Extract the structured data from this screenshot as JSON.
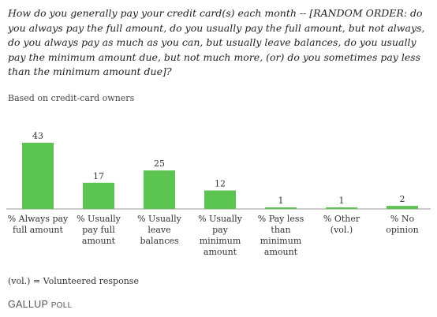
{
  "question": "How do you generally pay your credit card(s) each month -- [RANDOM ORDER: do you always pay the full amount, do you usually pay the full amount, but not always, do you always pay as much as you can, but usually leave balances, do you usually pay the minimum amount due, but not much more, (or) do you sometimes pay less than the minimum amount due]?",
  "subtitle": "Based on credit-card owners",
  "footnote": "(vol.) = Volunteered response",
  "logo": {
    "main": "GALLUP",
    "sub": "POLL"
  },
  "colors": {
    "bar": "#5cc552",
    "axis": "#999999"
  },
  "chart_data": {
    "type": "bar",
    "title": "",
    "xlabel": "",
    "ylabel": "",
    "ylim": [
      0,
      43
    ],
    "grid": false,
    "legend": "none",
    "categories": [
      [
        "% Always pay",
        "full amount"
      ],
      [
        "% Usually",
        "pay full",
        "amount"
      ],
      [
        "% Usually",
        "leave",
        "balances"
      ],
      [
        "% Usually",
        "pay",
        "minimum",
        "amount"
      ],
      [
        "% Pay less",
        "than",
        "minimum",
        "amount"
      ],
      [
        "% Other",
        "(vol.)"
      ],
      [
        "% No",
        "opinion"
      ]
    ],
    "values": [
      43,
      17,
      25,
      12,
      1,
      1,
      2
    ]
  }
}
